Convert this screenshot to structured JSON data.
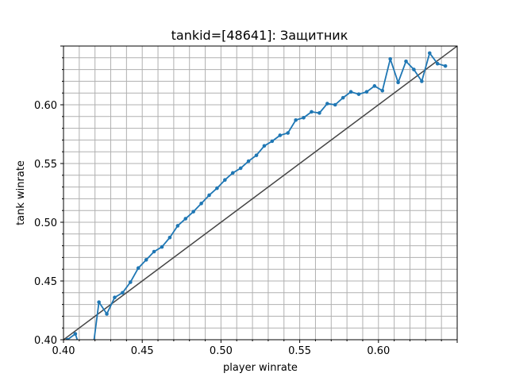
{
  "chart_data": {
    "type": "line",
    "title": "tankid=[48641]: Защитник",
    "xlabel": "player winrate",
    "ylabel": "tank winrate",
    "xlim": [
      0.4,
      0.65
    ],
    "ylim": [
      0.4,
      0.65
    ],
    "x_ticks": [
      "0.40",
      "0.45",
      "0.50",
      "0.55",
      "0.60"
    ],
    "y_ticks": [
      "0.40",
      "0.45",
      "0.50",
      "0.55",
      "0.60"
    ],
    "grid": true,
    "minor_grid_step": 0.01,
    "series_color": "#1f77b4",
    "reference_line_color": "#444444",
    "reference_line": {
      "from": [
        0.4,
        0.4
      ],
      "to": [
        0.65,
        0.65
      ]
    },
    "series": [
      {
        "x": [
          0.4025,
          0.4075,
          0.4125,
          0.4175,
          0.4225,
          0.4275,
          0.4325,
          0.4375,
          0.4425,
          0.4475,
          0.4525,
          0.4575,
          0.4625,
          0.4675,
          0.4725,
          0.4775,
          0.4825,
          0.4875,
          0.4925,
          0.4975,
          0.5025,
          0.5075,
          0.5125,
          0.5175,
          0.5225,
          0.5275,
          0.5325,
          0.5375,
          0.5425,
          0.5475,
          0.5525,
          0.5575,
          0.5625,
          0.5675,
          0.5725,
          0.5775,
          0.5825,
          0.5875,
          0.5925,
          0.5975,
          0.6025,
          0.6075,
          0.6125,
          0.6175,
          0.6225,
          0.6275,
          0.6325,
          0.6375,
          0.6425
        ],
        "values": [
          0.4,
          0.405,
          0.385,
          0.38,
          0.432,
          0.422,
          0.436,
          0.44,
          0.449,
          0.461,
          0.468,
          0.475,
          0.479,
          0.487,
          0.497,
          0.503,
          0.509,
          0.516,
          0.523,
          0.529,
          0.536,
          0.542,
          0.546,
          0.552,
          0.557,
          0.565,
          0.569,
          0.574,
          0.576,
          0.587,
          0.589,
          0.594,
          0.593,
          0.601,
          0.6,
          0.606,
          0.611,
          0.609,
          0.611,
          0.616,
          0.612,
          0.639,
          0.619,
          0.637,
          0.63,
          0.62,
          0.644,
          0.635,
          0.633
        ]
      }
    ]
  }
}
